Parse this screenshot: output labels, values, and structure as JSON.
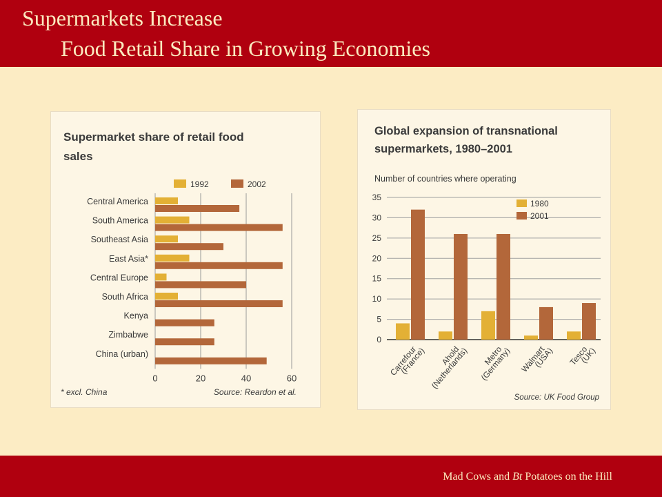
{
  "slide": {
    "title_line1": "Supermarkets Increase",
    "title_line2": "Food Retail Share in Growing Economies",
    "footer_prefix": "Mad Cows and ",
    "footer_italic": "Bt",
    "footer_suffix": " Potatoes on the Hill"
  },
  "colors": {
    "band": "#b0000f",
    "background": "#fcecc4",
    "series_a": "#e3b035",
    "series_b": "#b3673a"
  },
  "chart_data": [
    {
      "type": "bar",
      "orientation": "horizontal",
      "title_line1": "Supermarket share of retail food",
      "title_line2": "sales",
      "categories": [
        "Central America",
        "South America",
        "Southeast Asia",
        "East Asia*",
        "Central Europe",
        "South Africa",
        "Kenya",
        "Zimbabwe",
        "China (urban)"
      ],
      "series": [
        {
          "name": "1992",
          "values": [
            10,
            15,
            10,
            15,
            5,
            10,
            0,
            0,
            0
          ]
        },
        {
          "name": "2002",
          "values": [
            37,
            56,
            30,
            56,
            40,
            56,
            26,
            26,
            49
          ]
        }
      ],
      "xticks": [
        0,
        20,
        40,
        60
      ],
      "xlim": [
        0,
        60
      ],
      "grid": true,
      "legend": "top",
      "footnote": "* excl. China",
      "source": "Source: Reardon et al."
    },
    {
      "type": "bar",
      "orientation": "vertical",
      "title_line1": "Global expansion of transnational",
      "title_line2": "supermarkets, 1980–2001",
      "ylabel": "Number of countries where operating",
      "categories": [
        {
          "line1": "Carrefour",
          "line2": "(France)"
        },
        {
          "line1": "Ahold",
          "line2": "(Netherlands)"
        },
        {
          "line1": "Metro",
          "line2": "(Germany)"
        },
        {
          "line1": "Walmart",
          "line2": "(USA)"
        },
        {
          "line1": "Tesco",
          "line2": "(UK)"
        }
      ],
      "series": [
        {
          "name": "1980",
          "values": [
            4,
            2,
            7,
            1,
            2
          ]
        },
        {
          "name": "2001",
          "values": [
            32,
            26,
            26,
            8,
            9
          ]
        }
      ],
      "yticks": [
        0,
        5,
        10,
        15,
        20,
        25,
        30,
        35
      ],
      "ylim": [
        0,
        35
      ],
      "grid": true,
      "legend": "top-right",
      "source": "Source: UK Food Group"
    }
  ]
}
